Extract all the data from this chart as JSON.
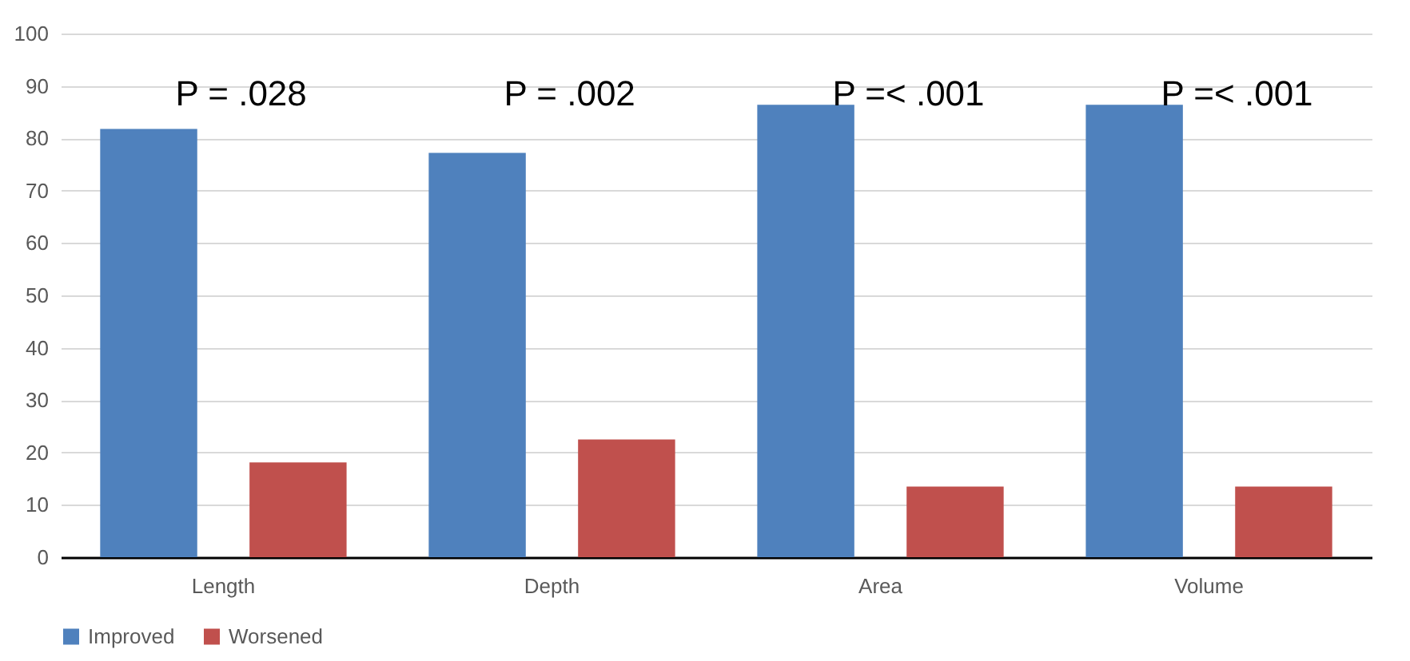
{
  "chart_data": {
    "type": "bar",
    "categories": [
      "Length",
      "Depth",
      "Area",
      "Volume"
    ],
    "series": [
      {
        "name": "Improved",
        "color": "#4f81bd",
        "values": [
          81.8,
          77.2,
          86.4,
          86.4
        ]
      },
      {
        "name": "Worsened",
        "color": "#c0504d",
        "values": [
          18.1,
          22.5,
          13.5,
          13.5
        ]
      }
    ],
    "ylim": [
      0,
      100
    ],
    "yticks": [
      0,
      10,
      20,
      30,
      40,
      50,
      60,
      70,
      80,
      90,
      100
    ],
    "grid": "y",
    "legend": "bottom",
    "annotations": [
      "P = .028",
      "P = .002",
      "P =< .001",
      "P =< .001"
    ]
  }
}
